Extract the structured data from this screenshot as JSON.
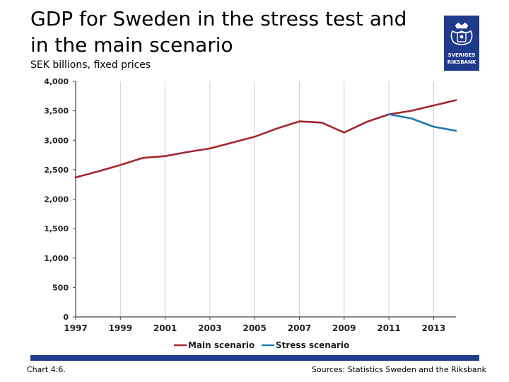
{
  "header": {
    "title_line1": "GDP for Sweden in the stress test and",
    "title_line2": "in the main scenario",
    "subtitle": "SEK billions, fixed prices"
  },
  "logo": {
    "icon": "sveriges-riksbank-crest-icon",
    "line1": "SVERIGES",
    "line2": "RIKSBANK"
  },
  "footer": {
    "chart_number": "Chart 4:6.",
    "sources": "Sources: Statistics Sweden and the Riksbank"
  },
  "colors": {
    "main": "#a3262f",
    "stress": "#2278b0",
    "brand": "#1f3b8c"
  },
  "chart_data": {
    "type": "line",
    "title": "GDP for Sweden in the stress test and in the main scenario",
    "ylabel": "SEK billions, fixed prices",
    "xlabel": "",
    "ylim": [
      0,
      4000
    ],
    "xlim": [
      1997,
      2014
    ],
    "y_ticks": [
      0,
      500,
      1000,
      1500,
      2000,
      2500,
      3000,
      3500,
      4000
    ],
    "y_tick_labels": [
      "0",
      "500",
      "1,000",
      "1,500",
      "2,000",
      "2,500",
      "3,000",
      "3,500",
      "4,000"
    ],
    "x_ticks": [
      1997,
      1999,
      2001,
      2003,
      2005,
      2007,
      2009,
      2011,
      2013
    ],
    "x_tick_labels": [
      "1997",
      "1999",
      "2001",
      "2003",
      "2005",
      "2007",
      "2009",
      "2011",
      "2013"
    ],
    "grid": "vertical",
    "legend_position": "bottom-center",
    "series": [
      {
        "name": "Main scenario",
        "color": "#a3262f",
        "x": [
          1997,
          1998,
          1999,
          2000,
          2001,
          2002,
          2003,
          2004,
          2005,
          2006,
          2007,
          2008,
          2009,
          2010,
          2011,
          2012,
          2013,
          2014
        ],
        "y": [
          2370,
          2470,
          2580,
          2700,
          2730,
          2800,
          2860,
          2960,
          3060,
          3200,
          3320,
          3300,
          3130,
          3310,
          3440,
          3500,
          3590,
          3680
        ]
      },
      {
        "name": "Stress scenario",
        "color": "#2278b0",
        "x": [
          2011,
          2012,
          2013,
          2014
        ],
        "y": [
          3440,
          3370,
          3230,
          3160
        ]
      }
    ]
  }
}
